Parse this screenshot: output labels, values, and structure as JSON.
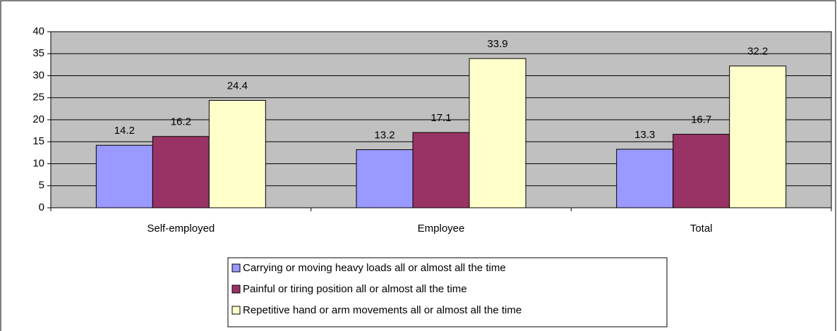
{
  "chart_data": {
    "type": "bar",
    "categories": [
      "Self-employed",
      "Employee",
      "Total"
    ],
    "series": [
      {
        "name": "Carrying or moving heavy loads all or almost all the time",
        "color": "#9999ff",
        "values": [
          14.2,
          13.2,
          13.3
        ]
      },
      {
        "name": "Painful or tiring position all or almost all the time",
        "color": "#993366",
        "values": [
          16.2,
          17.1,
          16.7
        ]
      },
      {
        "name": "Repetitive hand or arm movements all or almost all the time",
        "color": "#ffffcc",
        "values": [
          24.4,
          33.9,
          32.2
        ]
      }
    ],
    "ylim": [
      0,
      40
    ],
    "yticks": [
      0,
      5,
      10,
      15,
      20,
      25,
      30,
      35,
      40
    ],
    "grid": true,
    "legend": "bottom",
    "plot_background": "#c0c0c0"
  }
}
